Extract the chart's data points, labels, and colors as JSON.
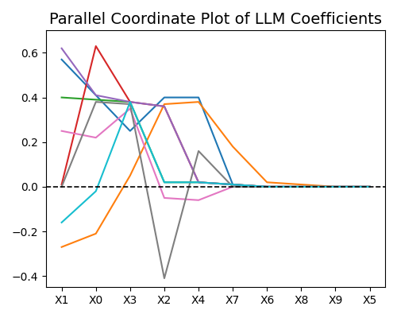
{
  "title": "Parallel Coordinate Plot of LLM Coefficients",
  "x_labels": [
    "X1",
    "X0",
    "X3",
    "X2",
    "X4",
    "X7",
    "X6",
    "X8",
    "X9",
    "X5"
  ],
  "lines": [
    {
      "color": "#1f77b4",
      "values": [
        0.57,
        0.41,
        0.25,
        0.4,
        0.4,
        0.01,
        0.0,
        0.0,
        0.0,
        0.0
      ]
    },
    {
      "color": "#ff7f0e",
      "values": [
        -0.27,
        -0.21,
        0.05,
        0.37,
        0.38,
        0.18,
        0.02,
        0.01,
        0.0,
        0.0
      ]
    },
    {
      "color": "#2ca02c",
      "values": [
        0.4,
        0.39,
        0.38,
        0.02,
        0.02,
        0.01,
        0.0,
        0.0,
        0.0,
        0.0
      ]
    },
    {
      "color": "#d62728",
      "values": [
        0.01,
        0.63,
        0.38,
        0.36,
        0.02,
        0.01,
        0.0,
        0.0,
        0.0,
        0.0
      ]
    },
    {
      "color": "#9467bd",
      "values": [
        0.62,
        0.41,
        0.38,
        0.36,
        0.02,
        0.01,
        0.0,
        0.0,
        0.0,
        0.0
      ]
    },
    {
      "color": "#e377c2",
      "values": [
        0.25,
        0.22,
        0.35,
        -0.05,
        -0.06,
        0.0,
        0.0,
        0.0,
        0.0,
        0.0
      ]
    },
    {
      "color": "#7f7f7f",
      "comment": "gray: 0.0, 0.38, 0.37, -0.41, 0.16, 0, 0",
      "values": [
        0.0,
        0.38,
        0.37,
        -0.41,
        0.16,
        0.0,
        0.0,
        0.0,
        0.0,
        0.0
      ]
    },
    {
      "color": "#17becf",
      "values": [
        -0.16,
        -0.02,
        0.38,
        0.02,
        0.02,
        0.01,
        0.0,
        0.0,
        0.0,
        0.0
      ]
    }
  ],
  "ylim": [
    -0.45,
    0.7
  ],
  "zero_line": true,
  "figsize": [
    5.0,
    4.0
  ],
  "dpi": 100,
  "title_fontsize": 14
}
